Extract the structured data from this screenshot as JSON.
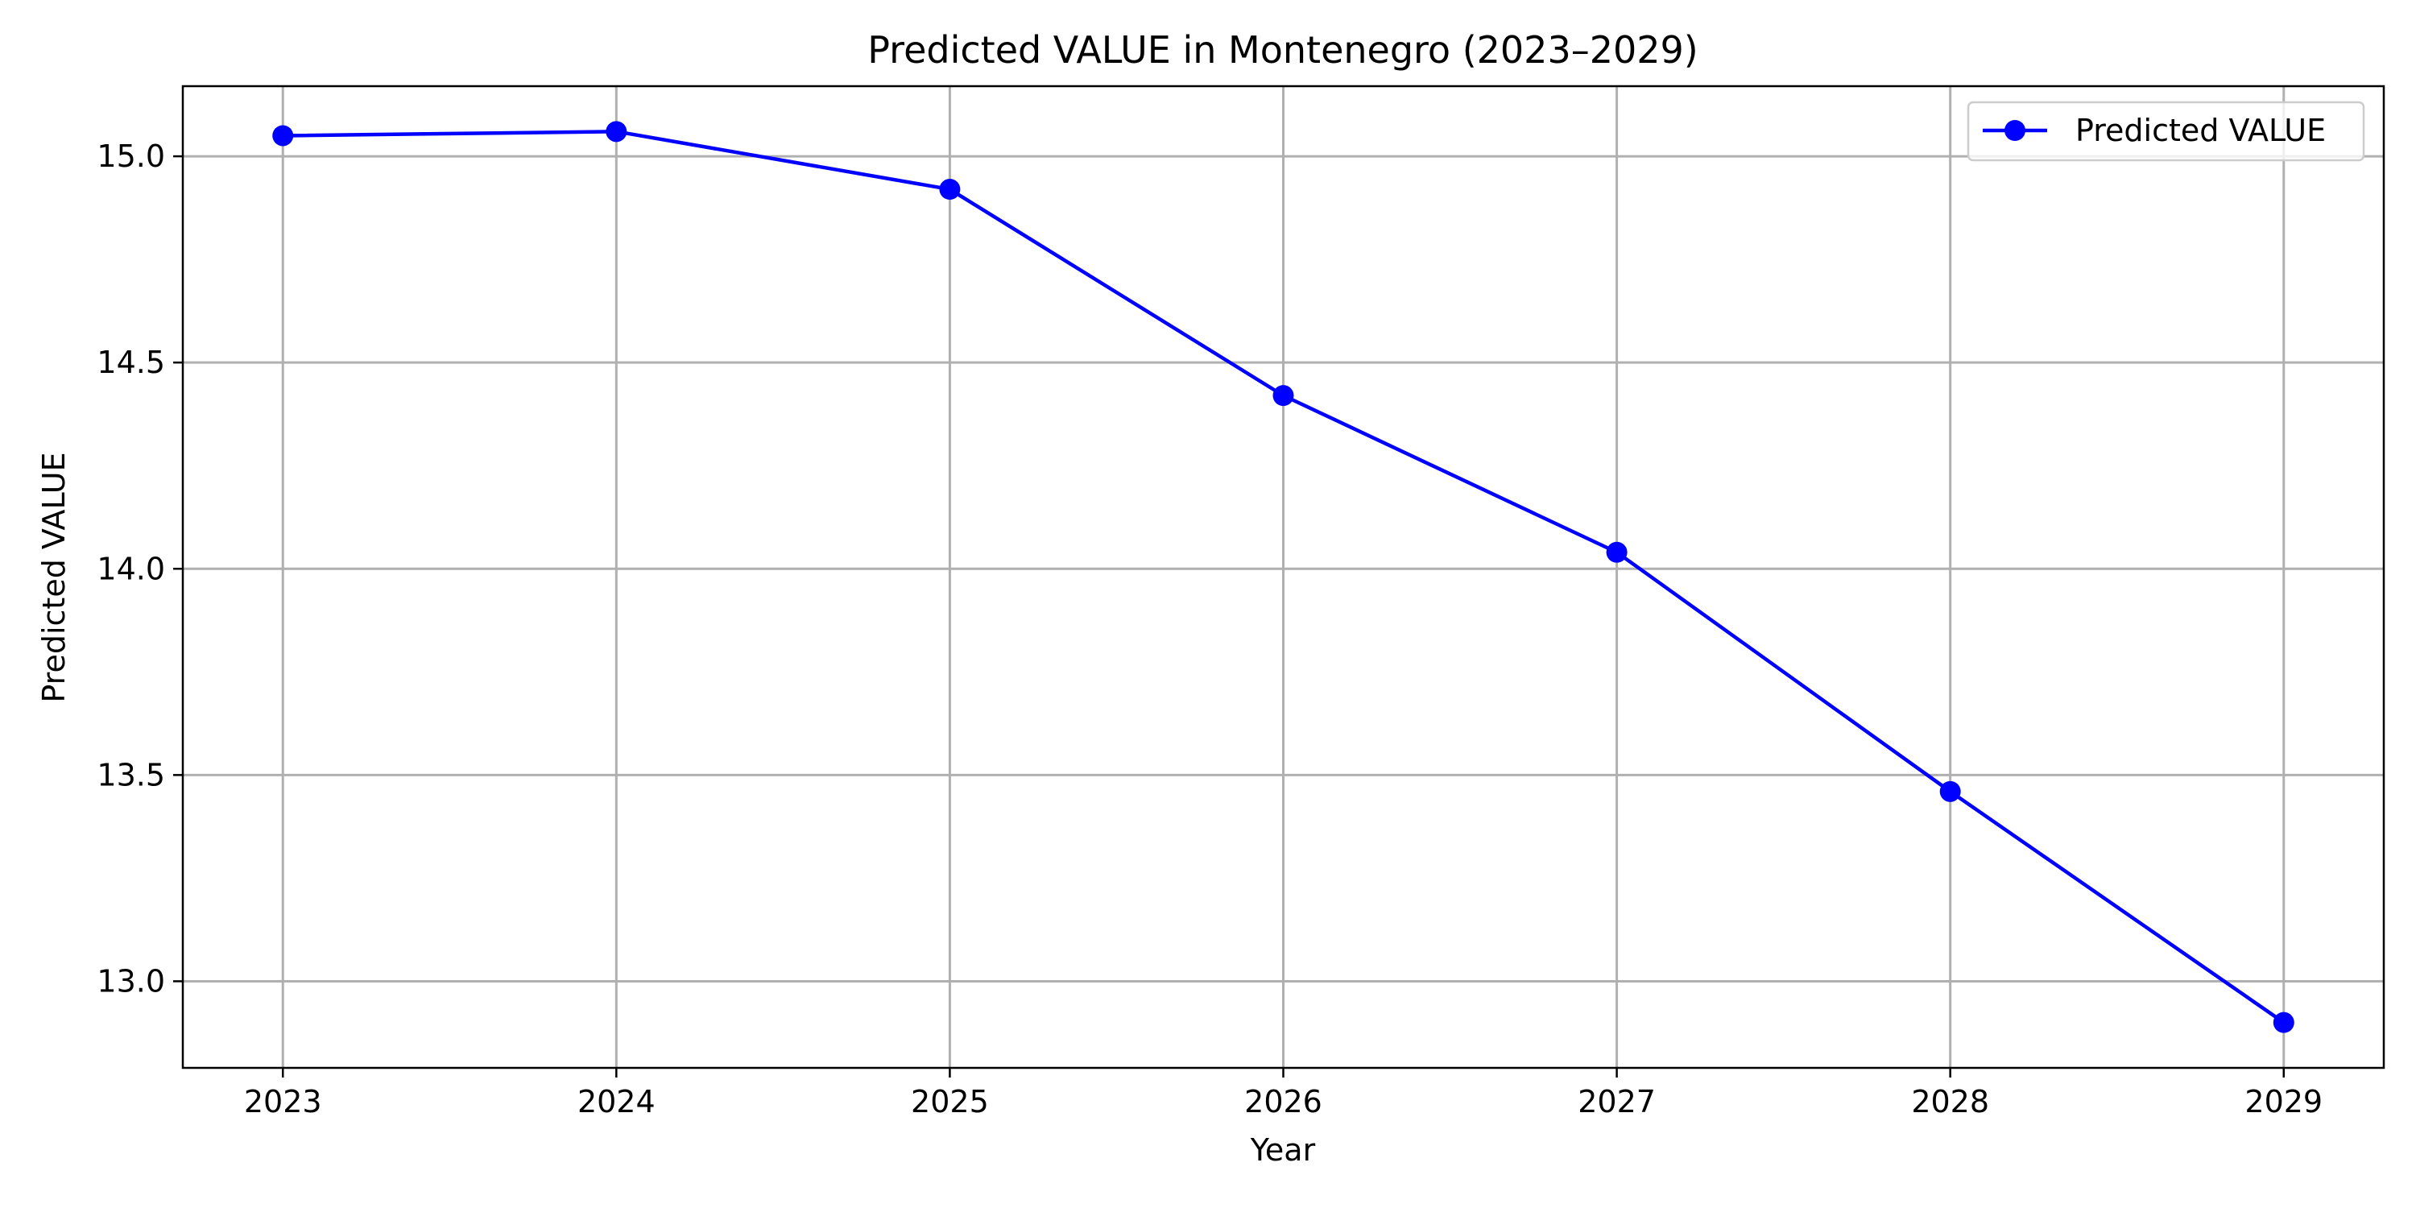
{
  "chart_data": {
    "type": "line",
    "title": "Predicted VALUE in Montenegro (2023–2029)",
    "xlabel": "Year",
    "ylabel": "Predicted VALUE",
    "x": [
      2023,
      2024,
      2025,
      2026,
      2027,
      2028,
      2029
    ],
    "x_tick_labels": [
      "2023",
      "2024",
      "2025",
      "2026",
      "2027",
      "2028",
      "2029"
    ],
    "y_ticks": [
      13.0,
      13.5,
      14.0,
      14.5,
      15.0
    ],
    "y_tick_labels": [
      "13.0",
      "13.5",
      "14.0",
      "14.5",
      "15.0"
    ],
    "xlim": [
      2022.7,
      2029.3
    ],
    "ylim": [
      12.79,
      15.17
    ],
    "grid": true,
    "legend_position": "upper right",
    "series": [
      {
        "name": "Predicted VALUE",
        "color": "#0000ff",
        "marker": "circle",
        "values": [
          15.05,
          15.06,
          14.92,
          14.42,
          14.04,
          13.46,
          12.9
        ]
      }
    ]
  }
}
